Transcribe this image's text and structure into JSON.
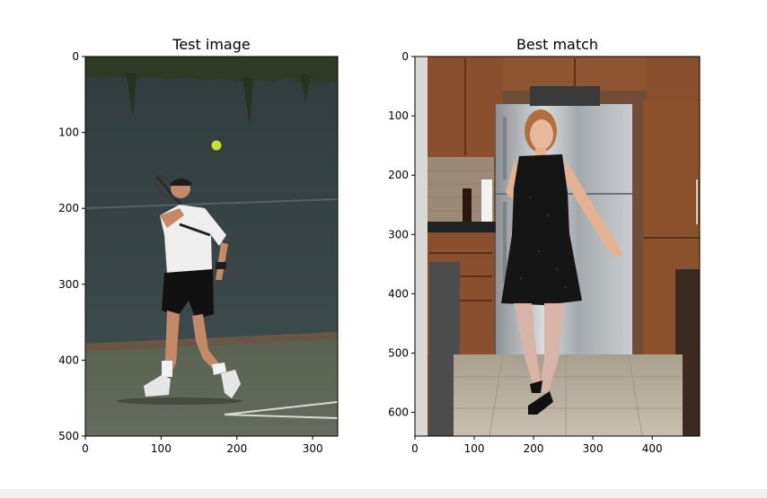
{
  "chart_data": [
    {
      "type": "image",
      "title": "Test image",
      "xlim": [
        0,
        333
      ],
      "ylim": [
        500,
        0
      ],
      "xticks": [
        0,
        100,
        200,
        300
      ],
      "yticks": [
        0,
        100,
        200,
        300,
        400,
        500
      ],
      "content": "tennis-player-serving"
    },
    {
      "type": "image",
      "title": "Best match",
      "xlim": [
        0,
        480
      ],
      "ylim": [
        640,
        0
      ],
      "xticks": [
        0,
        100,
        200,
        300,
        400
      ],
      "yticks": [
        0,
        100,
        200,
        300,
        400,
        500,
        600
      ],
      "content": "woman-in-kitchen"
    }
  ],
  "colors": {
    "axis": "#000000",
    "court_wall": "#3a4648",
    "court_floor": "#5c6458",
    "cabinet": "#8a4f2c",
    "fridge": "#b4b8bb",
    "floor_tile": "#b9ae9d"
  }
}
